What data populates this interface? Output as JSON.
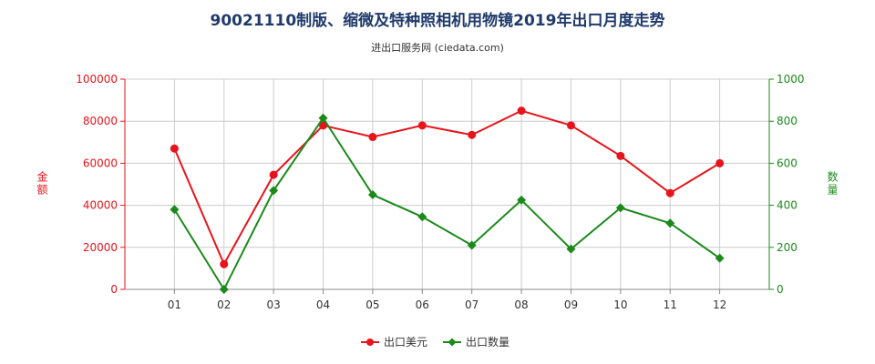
{
  "chart_data": {
    "type": "line",
    "title": "90021110制版、缩微及特种照相机用物镜2019年出口月度走势",
    "subtitle": "进出口服务网 (ciedata.com)",
    "categories": [
      "01",
      "02",
      "03",
      "04",
      "05",
      "06",
      "07",
      "08",
      "09",
      "10",
      "11",
      "12"
    ],
    "series": [
      {
        "name": "出口美元",
        "axis": "left",
        "color": "#e8141c",
        "values": [
          67000,
          12000,
          54500,
          78000,
          72500,
          78000,
          73500,
          85000,
          78000,
          63500,
          45800,
          60000
        ]
      },
      {
        "name": "出口数量",
        "axis": "right",
        "color": "#1b8a1b",
        "values": [
          380,
          0,
          470,
          815,
          450,
          345,
          210,
          425,
          192,
          388,
          315,
          148
        ]
      }
    ],
    "y_left": {
      "label": "金额",
      "min": 0,
      "max": 100000,
      "ticks": [
        "0",
        "20000",
        "40000",
        "60000",
        "80000",
        "100000"
      ],
      "color": "#e8141c"
    },
    "y_right": {
      "label": "数量",
      "min": 0,
      "max": 1000,
      "ticks": [
        "0",
        "200",
        "400",
        "600",
        "800",
        "1000"
      ],
      "color": "#1b8a1b"
    },
    "grid": true,
    "legend_position": "bottom-center"
  }
}
